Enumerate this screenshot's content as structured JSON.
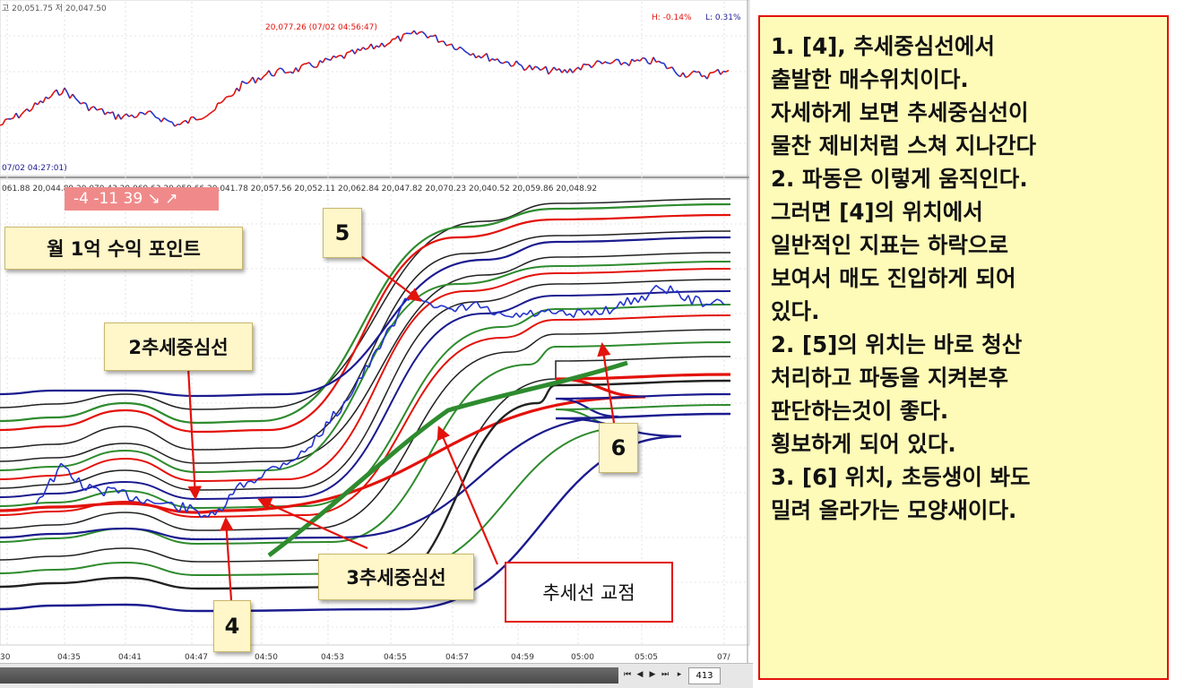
{
  "top_panel": {
    "header_values": "고 20,051.75 저 20,047.50",
    "hi_label": "H: -0.14%",
    "lo_label": "L: 0.31%",
    "peak_label": "20,077.26 (07/02 04:56:47)",
    "low_label": "07/02 04:27:01)"
  },
  "lower_panel": {
    "value_header": "061.88 20,044.89 20,070.43 20,069.63 20,059.66 20,041.78 20,057.56 20,052.11 20,062.84 20,047.82 20,070.23 20,040.52 20,059.86 20,048.92",
    "tally": "-4  -11  39  ↘ ↗"
  },
  "callouts": {
    "monthly_profit": "월 1억 수익 포인트",
    "trend_center_2": "2추세중심선",
    "trend_center_3": "3추세중심선",
    "label_4": "4",
    "label_5": "5",
    "label_6": "6",
    "trendline_cross": "추세선 교점"
  },
  "bottom_bar": {
    "zoom": "413"
  },
  "notes": [
    "1. [4], 추세중심선에서",
    "출발한 매수위치이다.",
    "자세하게 보면 추세중심선이",
    "물찬 제비처럼 스쳐 지나간다",
    "2. 파동은 이렇게 움직인다.",
    "그러면 [4]의 위치에서",
    "일반적인 지표는 하락으로",
    "보여서 매도 진입하게 되어",
    "있다.",
    "2. [5]의 위치는 바로 청산",
    "처리하고 파동을 지켜본후",
    "판단하는것이 좋다.",
    "횡보하게 되어 있다.",
    "3. [6] 위치, 초등생이 봐도",
    "밀려 올라가는 모양새이다."
  ],
  "chart_data": {
    "type": "line",
    "x_ticks": [
      "30",
      "04:35",
      "04:41",
      "04:47",
      "04:50",
      "04:53",
      "04:55",
      "04:57",
      "04:59",
      "05:00",
      "05:05",
      "07/"
    ],
    "colors": {
      "red": "#e3120b",
      "green": "#2e8b2e",
      "black": "#222222",
      "navy": "#1b1b8f",
      "price_blue": "#2233cc"
    },
    "grid": true
  }
}
